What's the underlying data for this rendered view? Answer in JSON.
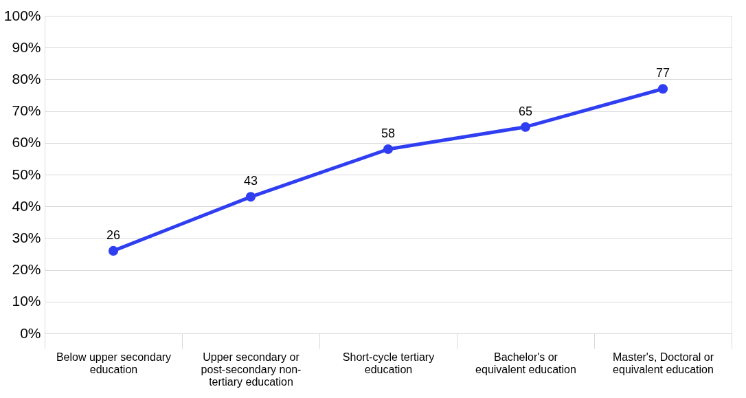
{
  "chart_data": {
    "type": "line",
    "categories": [
      "Below upper secondary education",
      "Upper secondary or post-secondary non-tertiary education",
      "Short-cycle tertiary education",
      "Bachelor's or equivalent education",
      "Master's, Doctoral or equivalent education"
    ],
    "series": [
      {
        "color": "#2f3ef0",
        "values": [
          26,
          43,
          58,
          65,
          77
        ]
      }
    ],
    "ylim": [
      0,
      100
    ],
    "yticks": [
      {
        "value": 0,
        "label": "0%"
      },
      {
        "value": 10,
        "label": "10%"
      },
      {
        "value": 20,
        "label": "20%"
      },
      {
        "value": 30,
        "label": "30%"
      },
      {
        "value": 40,
        "label": "40%"
      },
      {
        "value": 50,
        "label": "50%"
      },
      {
        "value": 60,
        "label": "60%"
      },
      {
        "value": 70,
        "label": "70%"
      },
      {
        "value": 80,
        "label": "80%"
      },
      {
        "value": 90,
        "label": "90%"
      },
      {
        "value": 100,
        "label": "100%"
      }
    ],
    "grid": "y",
    "marker": "circle",
    "line_style": "solid",
    "data_labels": true
  }
}
